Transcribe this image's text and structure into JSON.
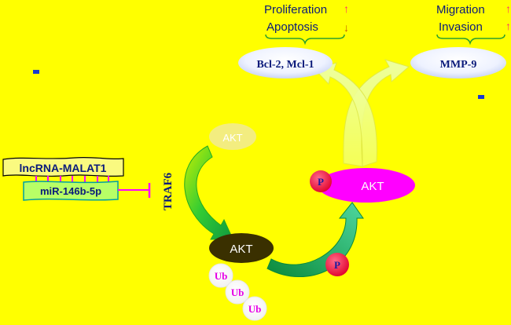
{
  "outcomes": {
    "proliferation": "Proliferation",
    "apoptosis": "Apoptosis",
    "migration": "Migration",
    "invasion": "Invasion",
    "up_arrow": "↑",
    "down_arrow": "↓"
  },
  "nodes": {
    "bcl": "Bcl-2, Mcl-1",
    "mmp": "MMP-9",
    "akt_faded": "AKT",
    "akt_dark": "AKT",
    "akt_active": "AKT",
    "lnc": "lncRNA-MALAT1",
    "mir": "miR-146b-5p",
    "traf6": "TRAF6",
    "phospho": "P",
    "ub": "Ub"
  },
  "colors": {
    "background": "#ffff00",
    "text_blue": "#0a1a7a",
    "magenta": "#ff00ff",
    "green": "#33cc33",
    "red": "#ff0033",
    "dark_olive": "#3a3000",
    "arrow_up": "#ff3366",
    "arrow_down": "#c06000"
  }
}
